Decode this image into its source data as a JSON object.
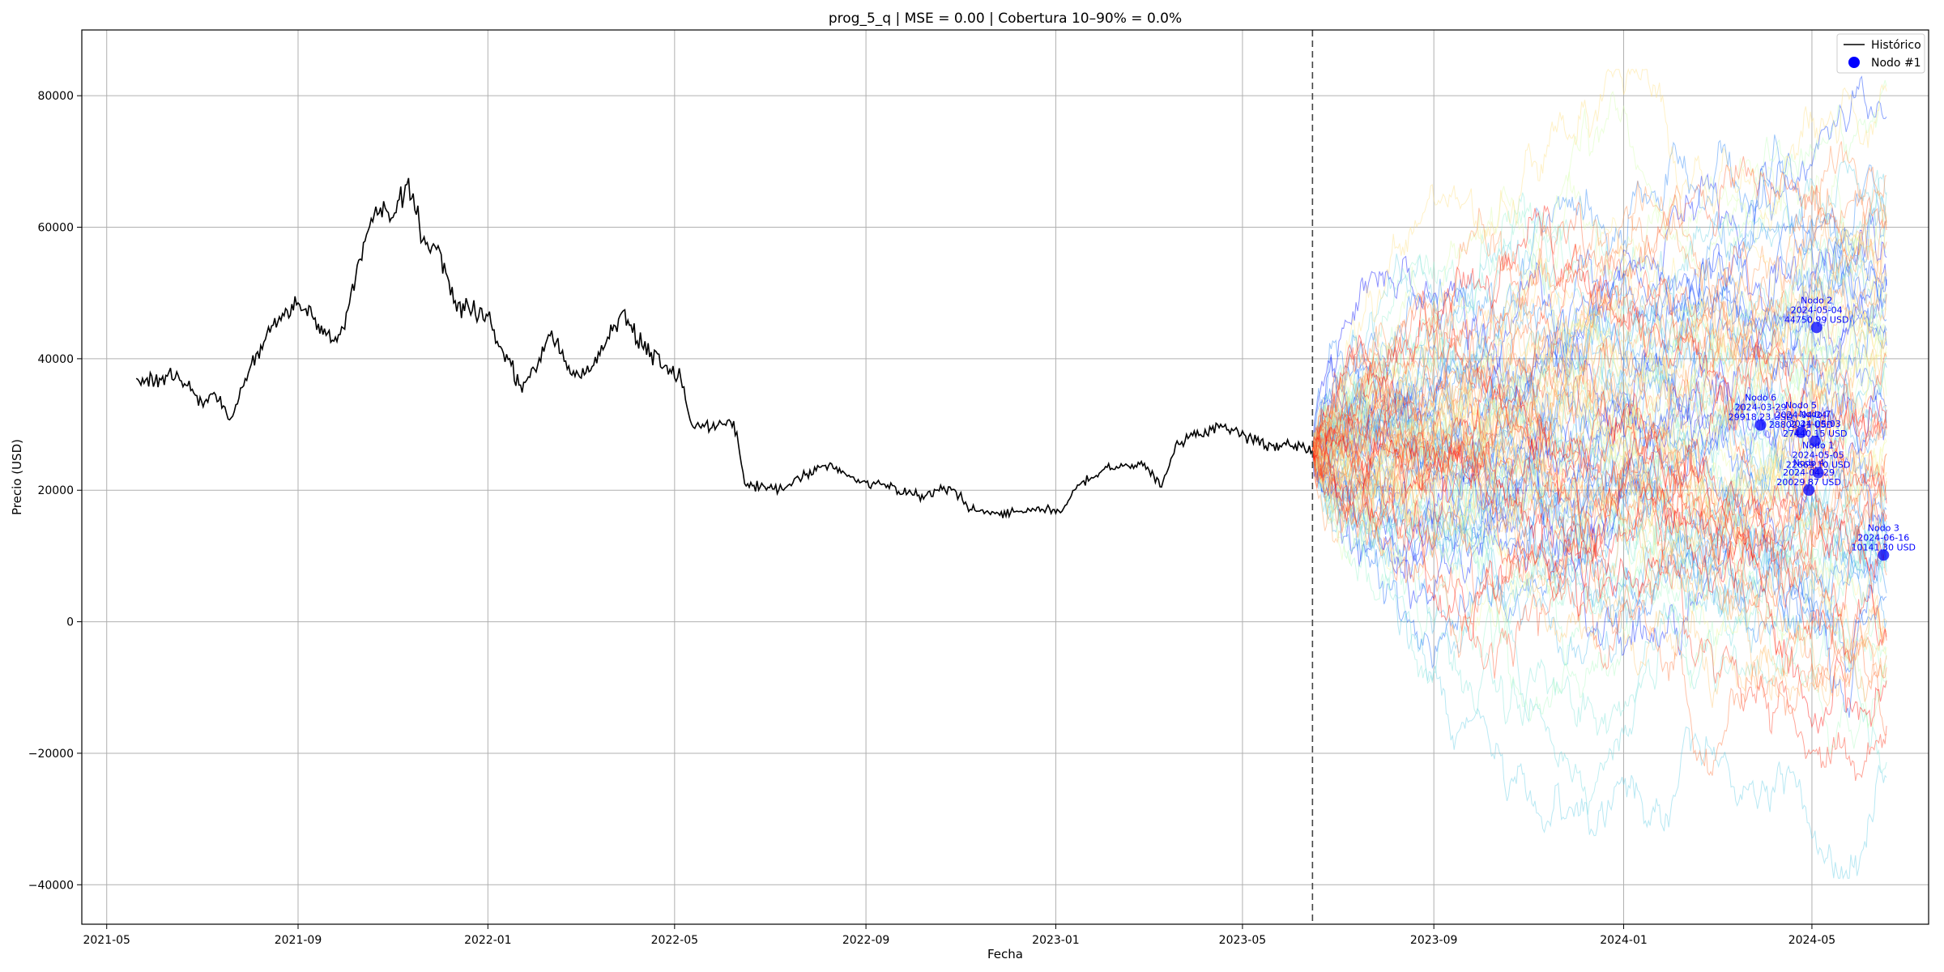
{
  "chart_data": {
    "type": "line",
    "title": "prog_5_q | MSE = 0.00 | Cobertura 10–90% = 0.0%",
    "xlabel": "Fecha",
    "ylabel": "Precio (USD)",
    "xlim": [
      "2021-04-15",
      "2024-07-15"
    ],
    "ylim": [
      -46000,
      90000
    ],
    "x_ticks": [
      "2021-05",
      "2021-09",
      "2022-01",
      "2022-05",
      "2022-09",
      "2023-01",
      "2023-05",
      "2023-09",
      "2024-01",
      "2024-05"
    ],
    "y_ticks": [
      -40000,
      -20000,
      0,
      20000,
      40000,
      60000,
      80000
    ],
    "y_tick_labels": [
      "−40000",
      "−20000",
      "0",
      "20000",
      "40000",
      "60000",
      "80000"
    ],
    "grid": true,
    "legend_position": "top-right",
    "forecast_start": "2023-06-15",
    "forecast_end": "2024-06-18",
    "historical": {
      "name": "Histórico",
      "color": "#000000",
      "points": [
        [
          "2021-05-20",
          37000
        ],
        [
          "2021-06-01",
          36500
        ],
        [
          "2021-06-15",
          38000
        ],
        [
          "2021-07-01",
          33500
        ],
        [
          "2021-07-10",
          34500
        ],
        [
          "2021-07-20",
          31000
        ],
        [
          "2021-08-01",
          38500
        ],
        [
          "2021-08-15",
          45000
        ],
        [
          "2021-09-01",
          48500
        ],
        [
          "2021-09-10",
          46500
        ],
        [
          "2021-09-22",
          42500
        ],
        [
          "2021-10-01",
          44500
        ],
        [
          "2021-10-10",
          55000
        ],
        [
          "2021-10-20",
          62000
        ],
        [
          "2021-11-01",
          61500
        ],
        [
          "2021-11-10",
          66500
        ],
        [
          "2021-11-20",
          58000
        ],
        [
          "2021-12-01",
          56500
        ],
        [
          "2021-12-10",
          48500
        ],
        [
          "2021-12-20",
          47500
        ],
        [
          "2022-01-01",
          46500
        ],
        [
          "2022-01-10",
          41500
        ],
        [
          "2022-01-22",
          36000
        ],
        [
          "2022-02-01",
          38000
        ],
        [
          "2022-02-10",
          43500
        ],
        [
          "2022-02-24",
          37500
        ],
        [
          "2022-03-10",
          39000
        ],
        [
          "2022-03-28",
          47000
        ],
        [
          "2022-04-10",
          42000
        ],
        [
          "2022-04-25",
          39000
        ],
        [
          "2022-05-05",
          37000
        ],
        [
          "2022-05-12",
          30000
        ],
        [
          "2022-05-25",
          29500
        ],
        [
          "2022-06-08",
          30500
        ],
        [
          "2022-06-15",
          21000
        ],
        [
          "2022-06-25",
          20500
        ],
        [
          "2022-07-10",
          20000
        ],
        [
          "2022-07-25",
          22500
        ],
        [
          "2022-08-10",
          24000
        ],
        [
          "2022-08-25",
          21500
        ],
        [
          "2022-09-10",
          21000
        ],
        [
          "2022-09-25",
          19500
        ],
        [
          "2022-10-10",
          19300
        ],
        [
          "2022-10-25",
          20500
        ],
        [
          "2022-11-08",
          17000
        ],
        [
          "2022-11-25",
          16500
        ],
        [
          "2022-12-15",
          17000
        ],
        [
          "2023-01-05",
          16800
        ],
        [
          "2023-01-15",
          20800
        ],
        [
          "2023-02-01",
          23200
        ],
        [
          "2023-02-15",
          24000
        ],
        [
          "2023-03-01",
          23500
        ],
        [
          "2023-03-10",
          20500
        ],
        [
          "2023-03-20",
          27500
        ],
        [
          "2023-04-05",
          28200
        ],
        [
          "2023-04-15",
          30000
        ],
        [
          "2023-04-28",
          29000
        ],
        [
          "2023-05-10",
          27500
        ],
        [
          "2023-05-25",
          26800
        ],
        [
          "2023-06-10",
          26300
        ],
        [
          "2023-06-15",
          26000
        ]
      ]
    },
    "simulations": {
      "count": 100,
      "start_value": 26000,
      "colormap": "rainbow",
      "opacity": 0.45,
      "spread_low": -39000,
      "spread_high": 84000
    },
    "nodes": [
      {
        "label": "Nodo 1",
        "date": "2024-05-05",
        "value_text": "22669.10 USD",
        "value": 22669.1
      },
      {
        "label": "Nodo 2",
        "date": "2024-05-04",
        "value_text": "44750.99 USD",
        "value": 44750.99
      },
      {
        "label": "Nodo 3",
        "date": "2024-06-16",
        "value_text": "10141.30 USD",
        "value": 10141.3
      },
      {
        "label": "Nodo 4",
        "date": "2024-04-29",
        "value_text": "20029.87 USD",
        "value": 20029.87
      },
      {
        "label": "Nodo 5",
        "date": "2024-04-24",
        "value_text": "28802.41 USD",
        "value": 28802.41
      },
      {
        "label": "Nodo 6",
        "date": "2024-03-29",
        "value_text": "29918.23 USD",
        "value": 29918.23
      },
      {
        "label": "Nodo 7",
        "date": "2024-05-03",
        "value_text": "27440.15 USD",
        "value": 27440.15
      }
    ],
    "legend": [
      {
        "name": "Histórico",
        "kind": "line",
        "color": "#000000"
      },
      {
        "name": "Nodo #1",
        "kind": "marker",
        "color": "#0000ff"
      }
    ]
  }
}
